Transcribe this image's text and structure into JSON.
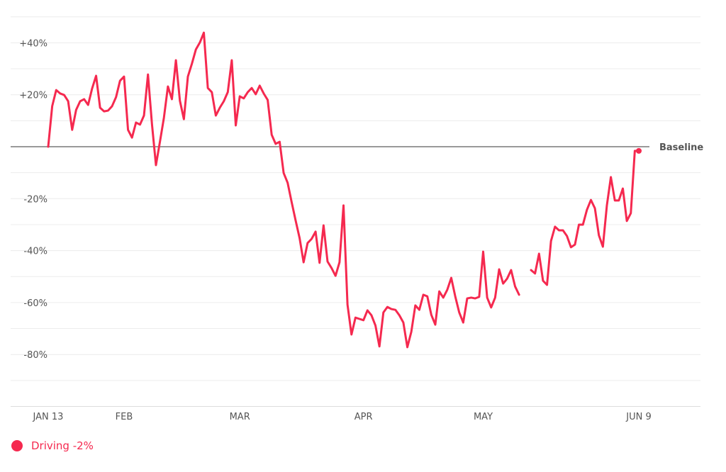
{
  "chart_data": {
    "type": "line",
    "title": "",
    "xlabel": "",
    "ylabel": "",
    "start_date": "JAN 13",
    "end_date": "JUN 9",
    "x_unit": "day",
    "x_range": [
      0,
      148
    ],
    "x_ticks": [
      {
        "label": "JAN 13",
        "day": 0
      },
      {
        "label": "FEB",
        "day": 19
      },
      {
        "label": "MAR",
        "day": 48
      },
      {
        "label": "APR",
        "day": 79
      },
      {
        "label": "MAY",
        "day": 109
      },
      {
        "label": "JUN 9",
        "day": 148
      }
    ],
    "ylim": [
      -100,
      50
    ],
    "y_grid_step": 10,
    "y_ticks": [
      {
        "label": "+40%",
        "value": 40
      },
      {
        "label": "+20%",
        "value": 20
      },
      {
        "label": "-20%",
        "value": -20
      },
      {
        "label": "-40%",
        "value": -40
      },
      {
        "label": "-60%",
        "value": -60
      },
      {
        "label": "-80%",
        "value": -80
      }
    ],
    "baseline": {
      "label": "Baseline",
      "value": 0
    },
    "grid": true,
    "legend_position": "bottom-left",
    "series": [
      {
        "name": "Driving",
        "legend_label": "Driving -2%",
        "color": "#f5294f",
        "values": [
          0,
          15.6,
          21.8,
          20.5,
          19.9,
          17.5,
          6.5,
          14.2,
          17.5,
          18.3,
          16.1,
          22.4,
          27.3,
          15,
          13.6,
          13.9,
          15.6,
          19.1,
          25.4,
          27,
          6.5,
          3.5,
          9.3,
          8.5,
          12,
          27.8,
          8.7,
          -7.1,
          1.9,
          11.2,
          23.2,
          18.3,
          33.3,
          17.7,
          10.6,
          27,
          31.9,
          37.4,
          40.1,
          43.9,
          22.6,
          21,
          12,
          15,
          17.5,
          21,
          33.3,
          8.2,
          19.4,
          18.6,
          21,
          22.6,
          20.2,
          23.5,
          20.5,
          18,
          4.6,
          1.1,
          1.9,
          -10.1,
          -13.9,
          -21.3,
          -28.4,
          -35.2,
          -44.5,
          -37.1,
          -35.5,
          -32.7,
          -44.7,
          -30.3,
          -44.2,
          -46.7,
          -49.7,
          -44.5,
          -22.6,
          -60.8,
          -72.3,
          -65.8,
          -66.3,
          -66.8,
          -63,
          -64.9,
          -68.8,
          -76.9,
          -63.8,
          -61.7,
          -62.5,
          -62.8,
          -64.9,
          -67.7,
          -77.2,
          -71.2,
          -61.1,
          -62.8,
          -57,
          -57.6,
          -64.7,
          -68.5,
          -55.7,
          -58.1,
          -55.1,
          -50.5,
          -57.6,
          -63.8,
          -67.7,
          -58.4,
          -58.1,
          -58.4,
          -57.8,
          -40.4,
          -58.1,
          -61.9,
          -58.1,
          -47.2,
          -52.7,
          -50.8,
          -47.5,
          -53.8,
          -57,
          null,
          null,
          -47.5,
          -48.8,
          -41.2,
          -51.6,
          -53.2,
          -36.3,
          -30.8,
          -32.2,
          -32.2,
          -34.4,
          -38.7,
          -37.7,
          -30,
          -30,
          -24.3,
          -20.5,
          -23.7,
          -34.1,
          -38.5,
          -22.6,
          -11.7,
          -20.7,
          -20.7,
          -16.1,
          -28.6,
          -25.6,
          -1.6,
          -1.6
        ]
      }
    ]
  }
}
